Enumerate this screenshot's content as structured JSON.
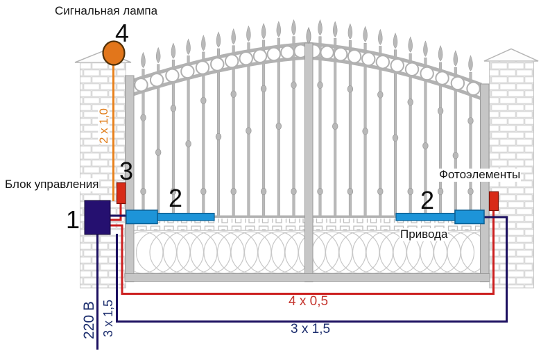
{
  "labels": {
    "signal_lamp": "Сигнальная лампа",
    "control_unit": "Блок управления",
    "photocells": "Фотоэлементы",
    "drives": "Привода"
  },
  "markers": {
    "control_unit": "1",
    "drive_left": "2",
    "drive_right": "2",
    "photocell": "3",
    "signal_lamp": "4"
  },
  "cables": {
    "lamp": "2 x 1,0",
    "photocell_run": "4 x 0,5",
    "drive_run": "3 x 1,5",
    "mains_voltage": "220 В",
    "mains_cable": "3 x 1,5"
  },
  "colors": {
    "lamp": "#e2761b",
    "lamp_stroke": "#4f3008",
    "lamp_wire": "#e8821e",
    "control_unit": "#251070",
    "control_unit_stroke": "#120833",
    "navy_wire": "#1c1060",
    "drive": "#1d94d8",
    "drive_stroke": "#0b5f92",
    "photocell": "#d82b18",
    "photocell_stroke": "#7e1206",
    "red_wire": "#cc1f1f"
  }
}
